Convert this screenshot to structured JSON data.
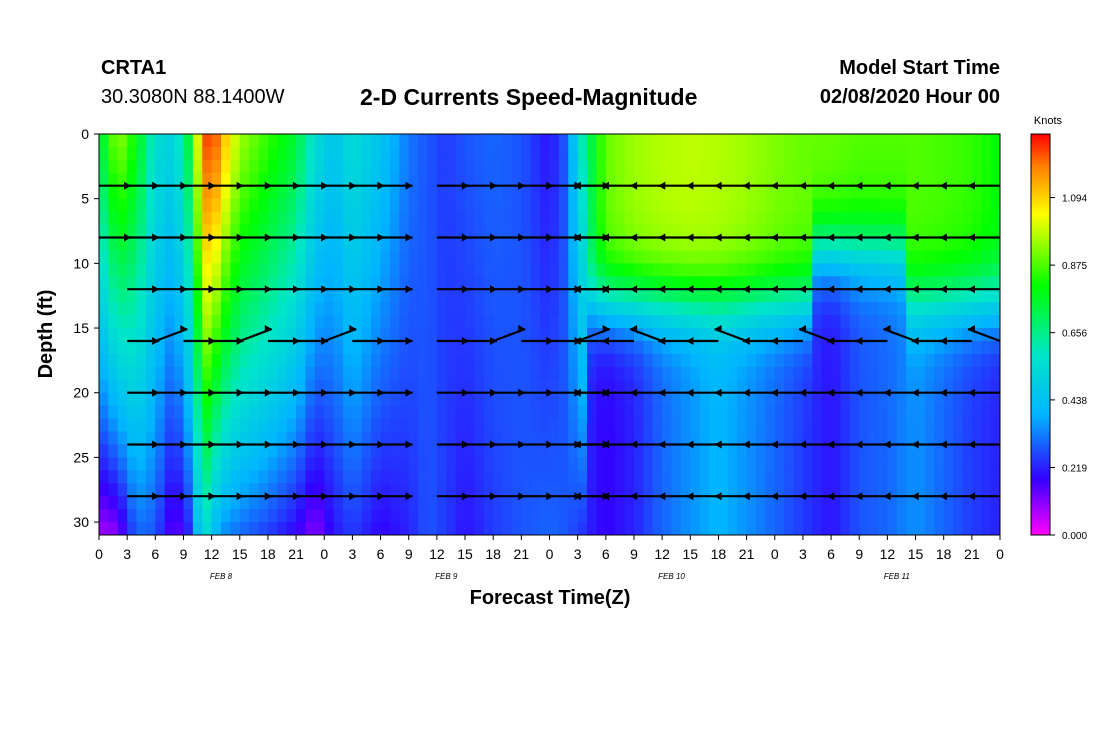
{
  "header": {
    "station": "CRTA1",
    "coords": "30.3080N 88.1400W",
    "title": "2-D Currents Speed-Magnitude",
    "model_start_label": "Model Start Time",
    "model_start_value": "02/08/2020 Hour 00"
  },
  "chart_data": {
    "type": "heatmap",
    "title": "2-D Currents Speed-Magnitude",
    "xlabel": "Forecast Time(Z)",
    "ylabel": "Depth (ft)",
    "x_tick_labels": [
      "0",
      "3",
      "6",
      "9",
      "12",
      "15",
      "18",
      "21",
      "0",
      "3",
      "6",
      "9",
      "12",
      "15",
      "18",
      "21",
      "0",
      "3",
      "6",
      "9",
      "12",
      "15",
      "18",
      "21",
      "0",
      "3",
      "6",
      "9",
      "12",
      "15",
      "18",
      "21",
      "0"
    ],
    "date_labels": [
      {
        "label": "FEB 8",
        "hour": 12
      },
      {
        "label": "FEB 9",
        "hour": 36
      },
      {
        "label": "FEB 10",
        "hour": 60
      },
      {
        "label": "FEB 11",
        "hour": 84
      }
    ],
    "xlim_hours": [
      0,
      96
    ],
    "ylim_ft": [
      0,
      31
    ],
    "y_ticks": [
      "0",
      "5",
      "10",
      "15",
      "20",
      "25",
      "30"
    ],
    "colorbar": {
      "label": "Knots",
      "ticks": [
        "0.000",
        "0.219",
        "0.438",
        "0.656",
        "0.875",
        "1.094"
      ],
      "range": [
        0,
        1.3
      ],
      "colors": [
        "#ff00ff",
        "#3300ff",
        "#00b4ff",
        "#00e6c8",
        "#00ff00",
        "#ffff00",
        "#ff7f00",
        "#ff0000"
      ]
    },
    "depth_profiles_ft": [
      0,
      4,
      8,
      12,
      16,
      20,
      24,
      28,
      31
    ],
    "speed_knots_by_hour": {
      "hours": [
        0,
        2,
        4,
        6,
        8,
        10,
        11,
        12,
        13,
        15,
        18,
        21,
        23,
        25,
        27,
        30,
        33,
        35,
        37,
        39,
        42,
        45,
        48,
        50,
        51,
        53,
        54,
        57,
        60,
        63,
        66,
        69,
        72,
        75,
        78,
        81,
        84,
        87,
        90,
        93,
        96
      ],
      "surface": [
        0.7,
        0.95,
        0.8,
        0.55,
        0.5,
        0.8,
        1.2,
        1.28,
        1.15,
        0.95,
        0.85,
        0.75,
        0.55,
        0.45,
        0.55,
        0.45,
        0.32,
        0.28,
        0.25,
        0.28,
        0.3,
        0.28,
        0.2,
        0.3,
        0.55,
        0.8,
        0.9,
        0.95,
        0.97,
        0.98,
        0.97,
        0.95,
        0.92,
        0.9,
        0.9,
        0.88,
        0.88,
        0.88,
        0.87,
        0.85,
        0.8
      ],
      "bottom": [
        0.08,
        0.1,
        0.3,
        0.28,
        0.12,
        0.25,
        0.6,
        0.45,
        0.35,
        0.3,
        0.25,
        0.18,
        0.1,
        0.2,
        0.25,
        0.18,
        0.22,
        0.28,
        0.25,
        0.2,
        0.25,
        0.28,
        0.3,
        0.28,
        0.25,
        0.2,
        0.18,
        0.22,
        0.3,
        0.35,
        0.4,
        0.35,
        0.3,
        0.25,
        0.2,
        0.28,
        0.3,
        0.35,
        0.3,
        0.25,
        0.22
      ]
    },
    "vectors": [
      {
        "depth": 4,
        "hours": [
          0,
          3,
          6,
          9,
          12,
          15,
          18,
          21,
          24,
          27,
          30,
          33,
          36,
          39,
          42,
          45,
          48,
          51,
          54,
          57,
          60,
          63,
          66,
          69,
          72,
          75,
          78,
          81,
          84,
          87,
          90,
          93,
          96
        ],
        "dir": "east-then-west"
      },
      {
        "depth": 8,
        "hours": [
          0,
          3,
          6,
          9,
          12,
          15,
          18,
          21,
          24,
          27,
          30,
          33,
          36,
          39,
          42,
          45,
          48,
          51,
          54,
          57,
          60,
          63,
          66,
          69,
          72,
          75,
          78,
          81,
          84,
          87,
          90,
          93,
          96
        ],
        "dir": "east-then-west"
      }
    ]
  }
}
